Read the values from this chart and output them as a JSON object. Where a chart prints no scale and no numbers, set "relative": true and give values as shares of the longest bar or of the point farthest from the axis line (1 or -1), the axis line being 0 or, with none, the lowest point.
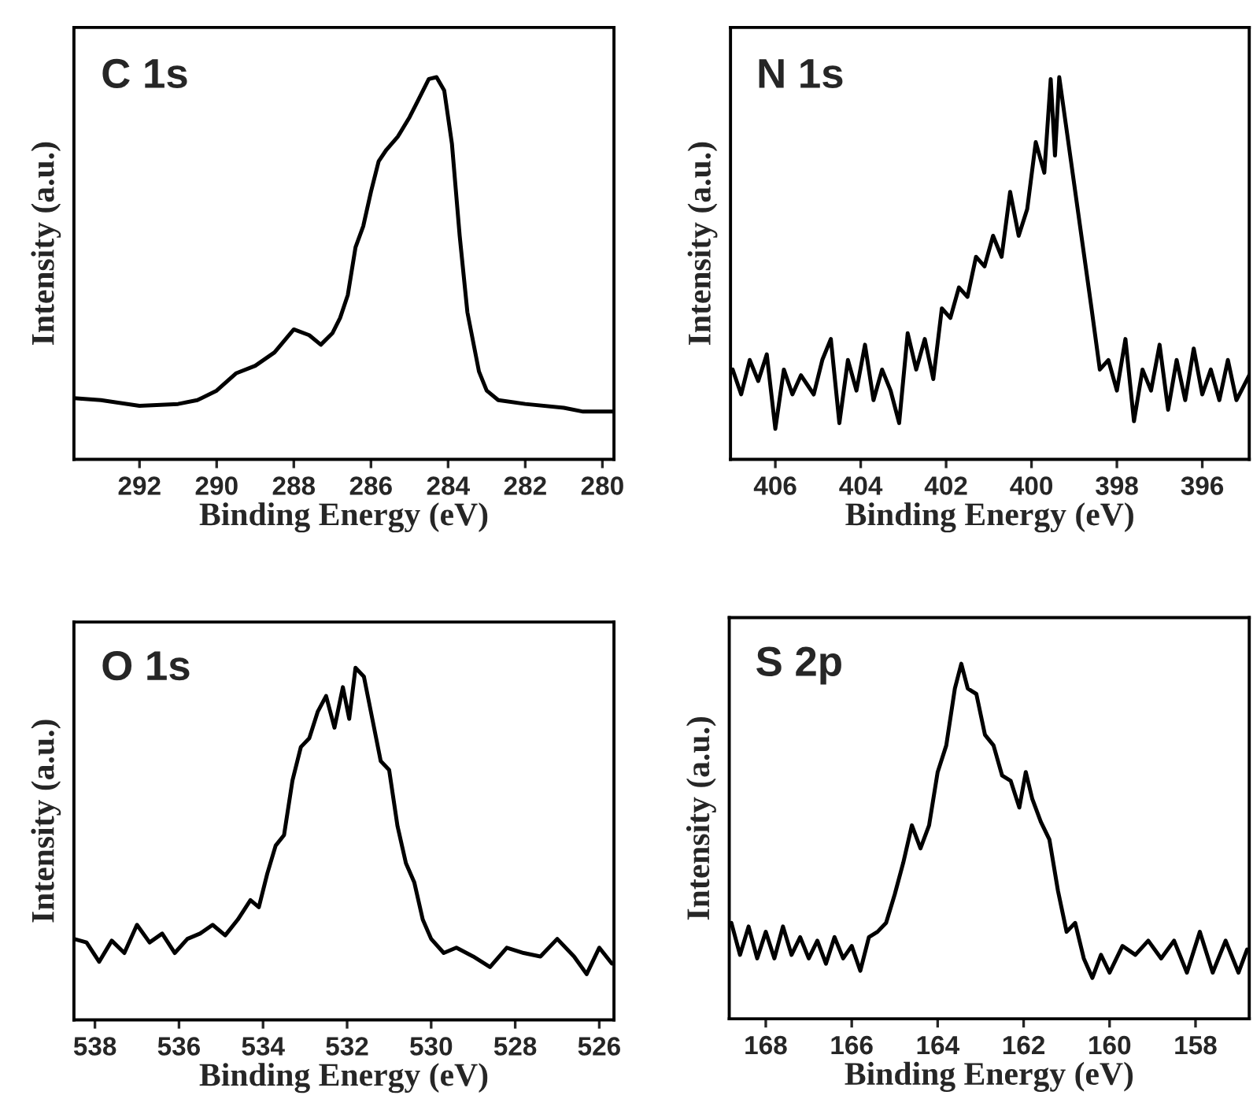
{
  "chart_data": [
    {
      "type": "line",
      "title": "C 1s",
      "xlabel": "Binding Energy (eV)",
      "ylabel": "Intensity (a.u.)",
      "relative": true,
      "grid": false,
      "xlim": [
        293.7,
        279.7
      ],
      "xticks": [
        292,
        290,
        288,
        286,
        284,
        282,
        280
      ],
      "x": [
        293.7,
        293,
        292,
        291,
        290.5,
        290,
        289.5,
        289,
        288.5,
        288,
        287.6,
        287.3,
        287,
        286.8,
        286.6,
        286.4,
        286.2,
        286,
        285.8,
        285.6,
        285.3,
        285,
        284.8,
        284.5,
        284.3,
        284.1,
        283.9,
        283.7,
        283.5,
        283.2,
        283,
        282.7,
        282,
        281,
        280.5,
        279.7
      ],
      "series": [
        {
          "color": "#000000",
          "values": [
            0.16,
            0.155,
            0.14,
            0.145,
            0.155,
            0.18,
            0.225,
            0.245,
            0.28,
            0.34,
            0.325,
            0.3,
            0.33,
            0.37,
            0.43,
            0.555,
            0.61,
            0.7,
            0.78,
            0.81,
            0.845,
            0.895,
            0.935,
            0.995,
            1.0,
            0.965,
            0.825,
            0.585,
            0.385,
            0.23,
            0.18,
            0.155,
            0.145,
            0.135,
            0.125,
            0.125
          ]
        }
      ]
    },
    {
      "type": "line",
      "title": "N 1s",
      "xlabel": "Binding Energy (eV)",
      "ylabel": "Intensity (a.u.)",
      "relative": true,
      "grid": false,
      "xlim": [
        407.05,
        394.9
      ],
      "xticks": [
        406,
        404,
        402,
        400,
        398,
        396
      ],
      "x": [
        407,
        406.8,
        406.6,
        406.4,
        406.2,
        406,
        405.8,
        405.6,
        405.4,
        405.1,
        404.9,
        404.7,
        404.5,
        404.3,
        404.1,
        403.9,
        403.7,
        403.5,
        403.3,
        403.1,
        402.9,
        402.7,
        402.5,
        402.3,
        402.1,
        401.9,
        401.7,
        401.5,
        401.3,
        401.1,
        400.9,
        400.7,
        400.5,
        400.3,
        400.1,
        399.9,
        399.7,
        399.55,
        399.45,
        399.35,
        399.2,
        399.0,
        398.8,
        398.6,
        398.4,
        398.2,
        398.0,
        397.8,
        397.6,
        397.4,
        397.2,
        397.0,
        396.8,
        396.6,
        396.4,
        396.2,
        396.0,
        395.8,
        395.6,
        395.4,
        395.2,
        394.9
      ],
      "series": [
        {
          "color": "#000000",
          "values": [
            0.235,
            0.17,
            0.26,
            0.205,
            0.275,
            0.08,
            0.235,
            0.17,
            0.22,
            0.17,
            0.26,
            0.315,
            0.095,
            0.26,
            0.18,
            0.3,
            0.155,
            0.235,
            0.18,
            0.095,
            0.33,
            0.235,
            0.315,
            0.21,
            0.395,
            0.37,
            0.45,
            0.425,
            0.53,
            0.505,
            0.585,
            0.53,
            0.7,
            0.585,
            0.655,
            0.83,
            0.75,
            0.995,
            0.795,
            1.0,
            0.88,
            0.72,
            0.56,
            0.4,
            0.235,
            0.26,
            0.18,
            0.315,
            0.1,
            0.235,
            0.18,
            0.3,
            0.13,
            0.26,
            0.155,
            0.29,
            0.17,
            0.235,
            0.155,
            0.26,
            0.155,
            0.22
          ]
        }
      ]
    },
    {
      "type": "line",
      "title": "O 1s",
      "xlabel": "Binding Energy (eV)",
      "ylabel": "Intensity (a.u.)",
      "relative": true,
      "grid": false,
      "xlim": [
        538.5,
        525.65
      ],
      "xticks": [
        538,
        536,
        534,
        532,
        530,
        528,
        526
      ],
      "x": [
        538.5,
        538.2,
        537.9,
        537.6,
        537.3,
        537,
        536.7,
        536.4,
        536.1,
        535.8,
        535.5,
        535.2,
        534.9,
        534.6,
        534.3,
        534.1,
        533.9,
        533.7,
        533.5,
        533.3,
        533.1,
        532.9,
        532.7,
        532.5,
        532.3,
        532.1,
        531.95,
        531.8,
        531.6,
        531.4,
        531.2,
        531,
        530.8,
        530.6,
        530.4,
        530.2,
        530,
        529.7,
        529.4,
        529,
        528.6,
        528.2,
        527.8,
        527.4,
        527,
        526.6,
        526.3,
        526,
        525.7
      ],
      "series": [
        {
          "color": "#000000",
          "values": [
            0.23,
            0.22,
            0.165,
            0.225,
            0.19,
            0.27,
            0.22,
            0.245,
            0.19,
            0.23,
            0.245,
            0.27,
            0.24,
            0.285,
            0.34,
            0.32,
            0.415,
            0.495,
            0.525,
            0.68,
            0.775,
            0.8,
            0.875,
            0.92,
            0.83,
            0.945,
            0.855,
            1.0,
            0.975,
            0.855,
            0.735,
            0.71,
            0.55,
            0.445,
            0.39,
            0.285,
            0.23,
            0.19,
            0.205,
            0.18,
            0.15,
            0.205,
            0.19,
            0.18,
            0.23,
            0.18,
            0.13,
            0.205,
            0.16
          ]
        }
      ]
    },
    {
      "type": "line",
      "title": "S 2p",
      "xlabel": "Binding Energy (eV)",
      "ylabel": "Intensity (a.u.)",
      "relative": true,
      "grid": false,
      "xlim": [
        168.85,
        156.75
      ],
      "xticks": [
        168,
        166,
        164,
        162,
        160,
        158
      ],
      "x": [
        168.8,
        168.6,
        168.4,
        168.2,
        168,
        167.8,
        167.6,
        167.4,
        167.2,
        167,
        166.8,
        166.6,
        166.4,
        166.2,
        166,
        165.8,
        165.6,
        165.4,
        165.2,
        165,
        164.8,
        164.6,
        164.4,
        164.2,
        164,
        163.8,
        163.6,
        163.45,
        163.3,
        163.1,
        162.9,
        162.7,
        162.5,
        162.3,
        162.1,
        161.95,
        161.8,
        161.6,
        161.4,
        161.2,
        161,
        160.8,
        160.6,
        160.4,
        160.2,
        160,
        159.7,
        159.4,
        159.1,
        158.8,
        158.5,
        158.2,
        157.9,
        157.6,
        157.3,
        157,
        156.8
      ],
      "series": [
        {
          "color": "#000000",
          "values": [
            0.27,
            0.18,
            0.26,
            0.17,
            0.245,
            0.17,
            0.26,
            0.18,
            0.23,
            0.17,
            0.22,
            0.155,
            0.23,
            0.17,
            0.205,
            0.135,
            0.23,
            0.245,
            0.27,
            0.35,
            0.44,
            0.545,
            0.48,
            0.545,
            0.695,
            0.77,
            0.93,
            1.0,
            0.93,
            0.915,
            0.8,
            0.77,
            0.685,
            0.67,
            0.595,
            0.695,
            0.62,
            0.555,
            0.505,
            0.36,
            0.245,
            0.27,
            0.17,
            0.115,
            0.18,
            0.13,
            0.205,
            0.18,
            0.22,
            0.17,
            0.22,
            0.13,
            0.245,
            0.13,
            0.22,
            0.13,
            0.195
          ]
        }
      ]
    }
  ]
}
